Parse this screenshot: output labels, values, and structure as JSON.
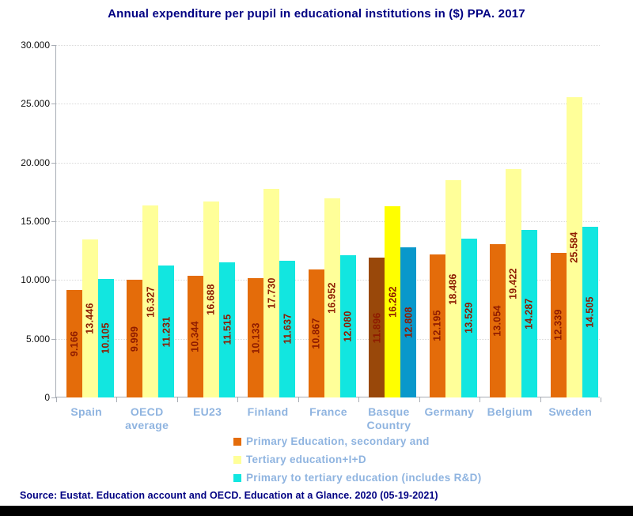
{
  "title": "Annual expenditure per pupil in educational institutions in ($) PPA. 2017",
  "source": "Source: Eustat. Education account and OECD. Education at a Glance. 2020 (05-19-2021)",
  "colors": {
    "title_text": "#000082",
    "source_text": "#000082",
    "category_label": "#8fb4e0",
    "legend_label": "#8fb4e0",
    "value_label": "#8e1b00",
    "axis": "#a8adb5",
    "gridline": "#d9d9d9",
    "footer_bar": "#000000",
    "background": "#ffffff"
  },
  "chart_data": {
    "type": "bar",
    "title": "Annual expenditure per pupil in educational institutions in ($) PPA. 2017",
    "categories": [
      "Spain",
      "OECD average",
      "EU23",
      "Finland",
      "France",
      "Basque Country",
      "Germany",
      "Belgium",
      "Sweden"
    ],
    "series": [
      {
        "name": "Primary Education, secondary and",
        "color": "#e46c0a",
        "highlight_color": "#99480a",
        "values": [
          9166,
          9999,
          10344,
          10133,
          10867,
          11896,
          12195,
          13054,
          12339
        ],
        "labels": [
          "9.166",
          "9.999",
          "10.344",
          "10.133",
          "10.867",
          "11.896",
          "12.195",
          "13.054",
          "12.339"
        ]
      },
      {
        "name": "Tertiary education+I+D",
        "color": "#ffff99",
        "highlight_color": "#ffff00",
        "values": [
          13446,
          16327,
          16688,
          17730,
          16952,
          16262,
          18486,
          19422,
          25584
        ],
        "labels": [
          "13.446",
          "16.327",
          "16.688",
          "17.730",
          "16.952",
          "16.262",
          "18.486",
          "19.422",
          "25.584"
        ]
      },
      {
        "name": "Primary to tertiary education (includes R&D)",
        "color": "#12e6e0",
        "highlight_color": "#0998cb",
        "values": [
          10105,
          11231,
          11515,
          11637,
          12080,
          12808,
          13529,
          14287,
          14505
        ],
        "labels": [
          "10.105",
          "11.231",
          "11.515",
          "11.637",
          "12.080",
          "12.808",
          "13.529",
          "14.287",
          "14.505"
        ]
      }
    ],
    "highlight_category": "Basque Country",
    "value_labels_rotation": "vertical",
    "y_axis": {
      "min": 0,
      "max": 30000,
      "step": 5000,
      "tick_labels": [
        "0",
        "5.000",
        "10.000",
        "15.000",
        "20.000",
        "25.000",
        "30.000"
      ]
    },
    "grid": "horizontal dotted",
    "legend_position": "bottom"
  }
}
